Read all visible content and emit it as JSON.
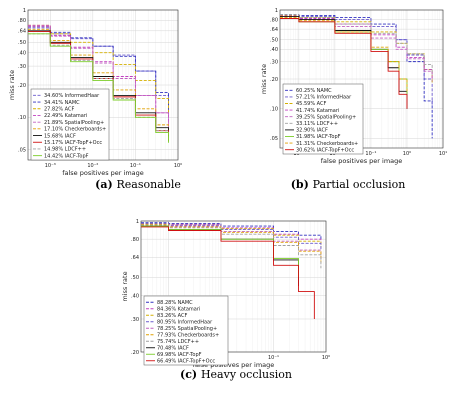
{
  "chart_data": [
    {
      "type": "line",
      "caption_letter": "(a)",
      "caption_text": "Reasonable",
      "xlabel": "false positives per image",
      "ylabel": "miss rate",
      "xscale": "log",
      "yscale": "log",
      "xlim": [
        0.0003,
        1
      ],
      "ylim": [
        0.04,
        1
      ],
      "xticks": [
        "10⁻³",
        "10⁻²",
        "10⁻¹",
        "10⁰"
      ],
      "yticks": [
        "1",
        ".80",
        ".64",
        ".50",
        ".40",
        ".30",
        ".20",
        ".10",
        ".05"
      ],
      "legend_position": "bottom-left",
      "grid": true,
      "series": [
        {
          "name": "34.60% InformedHaar",
          "color": "#6a5acd",
          "dash": "3,1.5",
          "x": [
            0.0003,
            0.001,
            0.003,
            0.01,
            0.03,
            0.1,
            0.3,
            0.6
          ],
          "y": [
            0.68,
            0.6,
            0.54,
            0.46,
            0.38,
            0.27,
            0.16,
            0.11
          ]
        },
        {
          "name": "34.41% NAMC",
          "color": "#3030c0",
          "dash": "3,1.5",
          "x": [
            0.0003,
            0.001,
            0.003,
            0.01,
            0.03,
            0.1,
            0.3,
            0.6
          ],
          "y": [
            0.7,
            0.62,
            0.55,
            0.46,
            0.37,
            0.27,
            0.17,
            0.1
          ]
        },
        {
          "name": "27.82% ACF",
          "color": "#d4b000",
          "dash": "3,1.5",
          "x": [
            0.0003,
            0.001,
            0.003,
            0.01,
            0.03,
            0.1,
            0.3,
            0.6
          ],
          "y": [
            0.72,
            0.6,
            0.5,
            0.4,
            0.31,
            0.22,
            0.15,
            0.11
          ]
        },
        {
          "name": "22.49% Katamari",
          "color": "#c040c0",
          "dash": "3,1.5",
          "x": [
            0.0003,
            0.001,
            0.003,
            0.01,
            0.03,
            0.1,
            0.3,
            0.6
          ],
          "y": [
            0.72,
            0.58,
            0.45,
            0.33,
            0.24,
            0.16,
            0.11,
            0.08
          ]
        },
        {
          "name": "21.89% SpatialPooling+",
          "color": "#c060c0",
          "dash": "3,1.5",
          "x": [
            0.0003,
            0.001,
            0.003,
            0.01,
            0.03,
            0.1,
            0.3,
            0.6
          ],
          "y": [
            0.7,
            0.57,
            0.44,
            0.32,
            0.23,
            0.16,
            0.11,
            0.08
          ]
        },
        {
          "name": "17.10% Checkerboards+",
          "color": "#e0a000",
          "dash": "3,1.5",
          "x": [
            0.0003,
            0.001,
            0.003,
            0.01,
            0.03,
            0.1,
            0.3,
            0.6
          ],
          "y": [
            0.66,
            0.52,
            0.38,
            0.26,
            0.18,
            0.12,
            0.085,
            0.065
          ]
        },
        {
          "name": "15.68% IACF",
          "color": "#111111",
          "dash": "",
          "x": [
            0.0003,
            0.001,
            0.003,
            0.01,
            0.03,
            0.1,
            0.3,
            0.6
          ],
          "y": [
            0.64,
            0.5,
            0.36,
            0.24,
            0.16,
            0.11,
            0.08,
            0.065
          ]
        },
        {
          "name": "15.17% IACF-TopF+Occ",
          "color": "#d01010",
          "dash": "",
          "x": [
            0.0003,
            0.001,
            0.003,
            0.01,
            0.03,
            0.1,
            0.3,
            0.6
          ],
          "y": [
            0.63,
            0.49,
            0.35,
            0.23,
            0.155,
            0.105,
            0.075,
            0.06
          ]
        },
        {
          "name": "14.98% LDCF++",
          "color": "#a0a0a0",
          "dash": "3,1.5",
          "x": [
            0.0003,
            0.001,
            0.003,
            0.01,
            0.03,
            0.1,
            0.3,
            0.6
          ],
          "y": [
            0.6,
            0.47,
            0.34,
            0.23,
            0.15,
            0.1,
            0.075,
            0.06
          ]
        },
        {
          "name": "14.42% IACF-TopF",
          "color": "#7ccd2a",
          "dash": "",
          "x": [
            0.0003,
            0.001,
            0.003,
            0.01,
            0.03,
            0.1,
            0.3,
            0.6
          ],
          "y": [
            0.6,
            0.46,
            0.33,
            0.22,
            0.145,
            0.1,
            0.072,
            0.058
          ]
        }
      ]
    },
    {
      "type": "line",
      "caption_letter": "(b)",
      "caption_text": "Partial occlusion",
      "xlabel": "false positives per image",
      "ylabel": "miss rate",
      "xscale": "log",
      "yscale": "log",
      "xlim": [
        0.0003,
        10
      ],
      "ylim": [
        0.04,
        1
      ],
      "xticks": [
        "10⁻³",
        "10⁻²",
        "10⁻¹",
        "10⁰",
        "10¹"
      ],
      "yticks": [
        "1",
        ".80",
        ".64",
        ".50",
        ".40",
        ".30",
        ".20",
        ".10",
        ".05"
      ],
      "legend_position": "bottom-left",
      "grid": true,
      "series": [
        {
          "name": "60.25% NAMC",
          "color": "#3030c0",
          "dash": "3,1.5",
          "x": [
            0.0003,
            0.001,
            0.01,
            0.1,
            0.5,
            1,
            3,
            5
          ],
          "y": [
            0.9,
            0.88,
            0.84,
            0.72,
            0.5,
            0.3,
            0.12,
            0.05
          ]
        },
        {
          "name": "57.21% InformedHaar",
          "color": "#6a5acd",
          "dash": "3,1.5",
          "x": [
            0.0003,
            0.001,
            0.01,
            0.1,
            0.5,
            1,
            3,
            5
          ],
          "y": [
            0.88,
            0.86,
            0.8,
            0.68,
            0.5,
            0.35,
            0.2,
            0.11
          ]
        },
        {
          "name": "45.59% ACF",
          "color": "#d4b000",
          "dash": "3,1.5",
          "x": [
            0.0003,
            0.001,
            0.01,
            0.1,
            0.5,
            1,
            3,
            5
          ],
          "y": [
            0.88,
            0.84,
            0.76,
            0.6,
            0.46,
            0.36,
            0.25,
            0.18
          ]
        },
        {
          "name": "41.74% Katamari",
          "color": "#c040c0",
          "dash": "3,1.5",
          "x": [
            0.0003,
            0.001,
            0.01,
            0.1,
            0.5,
            1,
            3,
            5
          ],
          "y": [
            0.87,
            0.82,
            0.72,
            0.56,
            0.42,
            0.33,
            0.25,
            0.2
          ]
        },
        {
          "name": "39.25% SpatialPooling+",
          "color": "#c060c0",
          "dash": "3,1.5",
          "x": [
            0.0003,
            0.001,
            0.01,
            0.1,
            0.5,
            1,
            3,
            5
          ],
          "y": [
            0.86,
            0.8,
            0.68,
            0.52,
            0.4,
            0.32,
            0.24,
            0.19
          ]
        },
        {
          "name": "33.11% LDCF++",
          "color": "#a0a0a0",
          "dash": "3,1.5",
          "x": [
            0.0003,
            0.001,
            0.01,
            0.1,
            0.5,
            1,
            3,
            5
          ],
          "y": [
            0.9,
            0.84,
            0.72,
            0.58,
            0.46,
            0.36,
            0.28,
            0.22
          ]
        },
        {
          "name": "32.90% IACF",
          "color": "#111111",
          "dash": "",
          "x": [
            0.0003,
            0.001,
            0.01,
            0.1,
            0.3,
            0.6,
            1
          ],
          "y": [
            0.86,
            0.8,
            0.62,
            0.4,
            0.26,
            0.15,
            0.1
          ]
        },
        {
          "name": "31.98% IACF-TopF",
          "color": "#7ccd2a",
          "dash": "",
          "x": [
            0.0003,
            0.001,
            0.01,
            0.1,
            0.3,
            0.6,
            1
          ],
          "y": [
            0.82,
            0.76,
            0.6,
            0.4,
            0.3,
            0.2,
            0.14
          ]
        },
        {
          "name": "31.31% Checkerboards+",
          "color": "#e0a000",
          "dash": "3,1.5",
          "x": [
            0.0003,
            0.001,
            0.01,
            0.1,
            0.3,
            0.6,
            1
          ],
          "y": [
            0.84,
            0.78,
            0.6,
            0.42,
            0.3,
            0.2,
            0.15
          ]
        },
        {
          "name": "30.62% IACF-TopF+Occ",
          "color": "#d01010",
          "dash": "",
          "x": [
            0.0003,
            0.001,
            0.01,
            0.1,
            0.3,
            0.6,
            1
          ],
          "y": [
            0.82,
            0.76,
            0.58,
            0.38,
            0.24,
            0.14,
            0.1
          ]
        }
      ]
    },
    {
      "type": "line",
      "caption_letter": "(c)",
      "caption_text": "Heavy occlusion",
      "xlabel": "false positives per image",
      "ylabel": "miss rate",
      "xscale": "log",
      "yscale": "log",
      "xlim": [
        0.0003,
        1
      ],
      "ylim": [
        0.2,
        1
      ],
      "xticks": [
        "10⁻³",
        "10⁻²",
        "10⁻¹",
        "10⁰"
      ],
      "yticks": [
        "1",
        ".80",
        ".64",
        ".50",
        ".40",
        ".30",
        ".20"
      ],
      "legend_position": "bottom-left",
      "grid": true,
      "series": [
        {
          "name": "88.28% NAMC",
          "color": "#3030c0",
          "dash": "3,1.5",
          "x": [
            0.0003,
            0.001,
            0.01,
            0.1,
            0.3,
            0.8
          ],
          "y": [
            0.98,
            0.97,
            0.94,
            0.88,
            0.84,
            0.8
          ]
        },
        {
          "name": "84.36% Katamari",
          "color": "#c040c0",
          "dash": "3,1.5",
          "x": [
            0.0003,
            0.001,
            0.01,
            0.1,
            0.3,
            0.8
          ],
          "y": [
            0.97,
            0.96,
            0.92,
            0.85,
            0.8,
            0.74
          ]
        },
        {
          "name": "83.26% ACF",
          "color": "#d4b000",
          "dash": "3,1.5",
          "x": [
            0.0003,
            0.001,
            0.01,
            0.1,
            0.3,
            0.8
          ],
          "y": [
            0.97,
            0.95,
            0.91,
            0.84,
            0.78,
            0.72
          ]
        },
        {
          "name": "80.95% InformedHaar",
          "color": "#6a5acd",
          "dash": "3,1.5",
          "x": [
            0.0003,
            0.001,
            0.01,
            0.1,
            0.3,
            0.8
          ],
          "y": [
            0.97,
            0.95,
            0.9,
            0.82,
            0.76,
            0.7
          ]
        },
        {
          "name": "78.25% SpatialPooling+",
          "color": "#c060c0",
          "dash": "3,1.5",
          "x": [
            0.0003,
            0.001,
            0.01,
            0.1,
            0.3,
            0.8
          ],
          "y": [
            0.96,
            0.94,
            0.88,
            0.78,
            0.7,
            0.62
          ]
        },
        {
          "name": "77.93% Checkerboards+",
          "color": "#e0a000",
          "dash": "3,1.5",
          "x": [
            0.0003,
            0.001,
            0.01,
            0.1,
            0.3,
            0.8
          ],
          "y": [
            0.96,
            0.93,
            0.87,
            0.77,
            0.69,
            0.6
          ]
        },
        {
          "name": "75.74% LDCF++",
          "color": "#a0a0a0",
          "dash": "3,1.5",
          "x": [
            0.0003,
            0.001,
            0.01,
            0.1,
            0.3,
            0.8
          ],
          "y": [
            0.95,
            0.92,
            0.85,
            0.74,
            0.66,
            0.56
          ]
        },
        {
          "name": "70.48% IACF",
          "color": "#111111",
          "dash": "",
          "x": [
            0.0003,
            0.001,
            0.01,
            0.1,
            0.3
          ],
          "y": [
            0.94,
            0.9,
            0.8,
            0.62,
            0.45
          ]
        },
        {
          "name": "69.98% IACF-TopF",
          "color": "#7ccd2a",
          "dash": "",
          "x": [
            0.0003,
            0.001,
            0.01,
            0.1,
            0.3
          ],
          "y": [
            0.94,
            0.9,
            0.8,
            0.63,
            0.5
          ]
        },
        {
          "name": "66.49% IACF-TopF+Occ",
          "color": "#d01010",
          "dash": "",
          "x": [
            0.0003,
            0.001,
            0.01,
            0.1,
            0.3,
            0.6
          ],
          "y": [
            0.93,
            0.89,
            0.78,
            0.58,
            0.42,
            0.3
          ]
        }
      ]
    }
  ]
}
